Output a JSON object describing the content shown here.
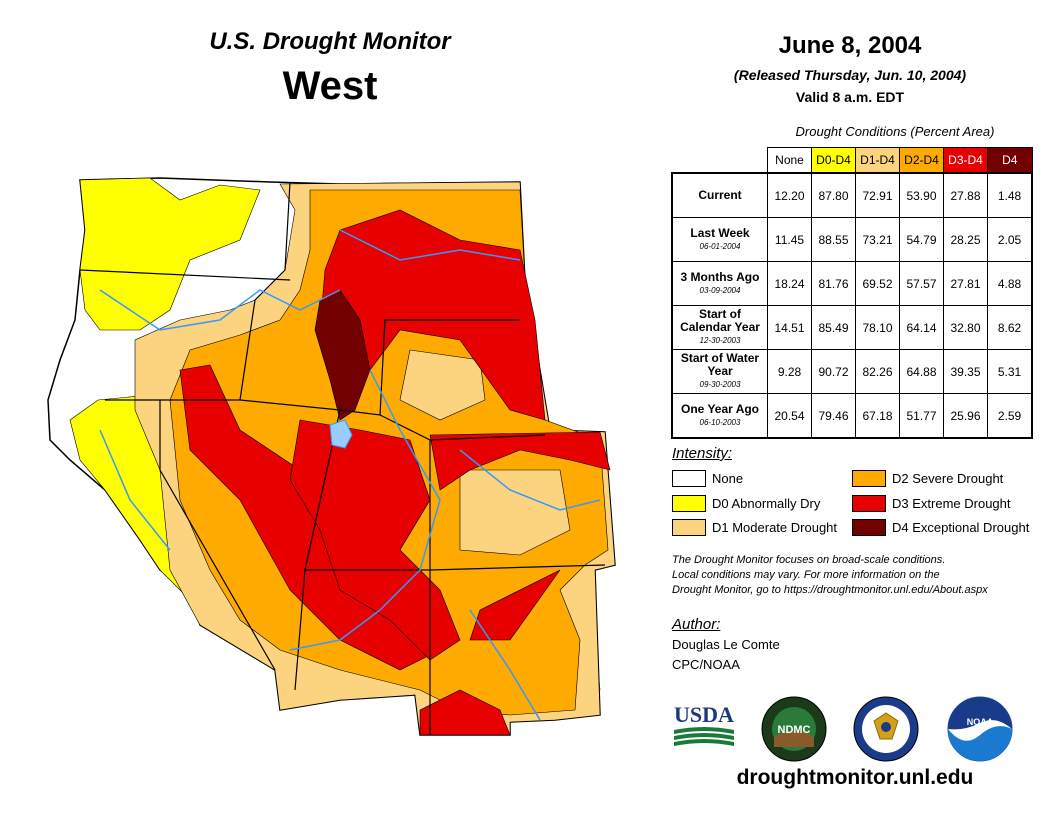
{
  "header": {
    "product_title": "U.S. Drought Monitor",
    "region": "West",
    "map_date": "June 8, 2004",
    "released": "(Released Thursday, Jun. 10, 2004)",
    "valid": "Valid 8 a.m. EDT"
  },
  "conditions": {
    "title": "Drought Conditions (Percent Area)",
    "columns": [
      {
        "label": "None",
        "bg": "#ffffff",
        "fg": "#000000"
      },
      {
        "label": "D0-D4",
        "bg": "#ffff00",
        "fg": "#000000"
      },
      {
        "label": "D1-D4",
        "bg": "#fcd37f",
        "fg": "#000000"
      },
      {
        "label": "D2-D4",
        "bg": "#ffaa00",
        "fg": "#000000"
      },
      {
        "label": "D3-D4",
        "bg": "#e60000",
        "fg": "#ffffff"
      },
      {
        "label": "D4",
        "bg": "#730000",
        "fg": "#ffffff"
      }
    ],
    "rows": [
      {
        "label": "Current",
        "date": "",
        "values": [
          "12.20",
          "87.80",
          "72.91",
          "53.90",
          "27.88",
          "1.48"
        ]
      },
      {
        "label": "Last Week",
        "date": "06-01-2004",
        "values": [
          "11.45",
          "88.55",
          "73.21",
          "54.79",
          "28.25",
          "2.05"
        ]
      },
      {
        "label": "3 Months Ago",
        "date": "03-09-2004",
        "values": [
          "18.24",
          "81.76",
          "69.52",
          "57.57",
          "27.81",
          "4.88"
        ]
      },
      {
        "label": "Start of Calendar Year",
        "date": "12-30-2003",
        "values": [
          "14.51",
          "85.49",
          "78.10",
          "64.14",
          "32.80",
          "8.62"
        ]
      },
      {
        "label": "Start of Water Year",
        "date": "09-30-2003",
        "values": [
          "9.28",
          "90.72",
          "82.26",
          "64.88",
          "39.35",
          "5.31"
        ]
      },
      {
        "label": "One Year Ago",
        "date": "06-10-2003",
        "values": [
          "20.54",
          "79.46",
          "67.18",
          "51.77",
          "25.96",
          "2.59"
        ]
      }
    ]
  },
  "legend": {
    "title": "Intensity:",
    "items": [
      {
        "label": "None",
        "color": "#ffffff"
      },
      {
        "label": "D0 Abnormally Dry",
        "color": "#ffff00"
      },
      {
        "label": "D1 Moderate Drought",
        "color": "#fcd37f"
      },
      {
        "label": "D2 Severe Drought",
        "color": "#ffaa00"
      },
      {
        "label": "D3 Extreme Drought",
        "color": "#e60000"
      },
      {
        "label": "D4 Exceptional Drought",
        "color": "#730000"
      }
    ]
  },
  "note": {
    "line1": "The Drought Monitor focuses on broad-scale conditions.",
    "line2": "Local conditions may vary. For more information on the",
    "line3": "Drought Monitor, go to https://droughtmonitor.unl.edu/About.aspx"
  },
  "author": {
    "heading": "Author:",
    "name": "Douglas Le Comte",
    "org": "CPC/NOAA"
  },
  "logos": {
    "usda": "USDA",
    "ndmc": "NDMC",
    "noaa": "NOAA"
  },
  "website": "droughtmonitor.unl.edu",
  "colors": {
    "none": "#ffffff",
    "d0": "#ffff00",
    "d1": "#fcd37f",
    "d2": "#ffaa00",
    "d3": "#e60000",
    "d4": "#730000",
    "water": "#3399ff",
    "border": "#000000"
  }
}
